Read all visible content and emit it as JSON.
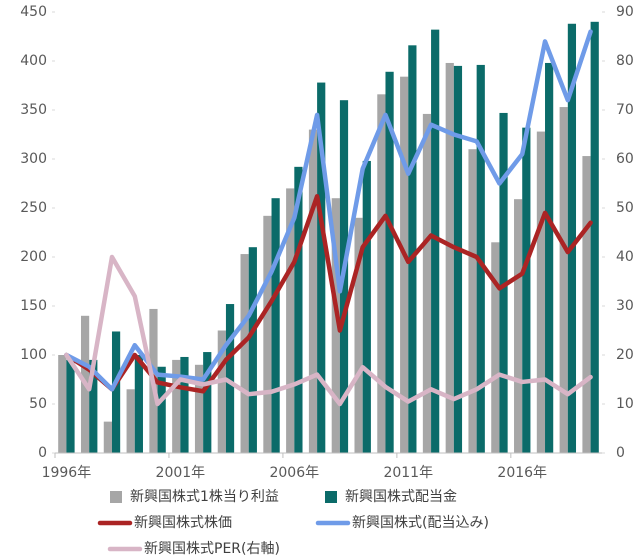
{
  "chart_data": {
    "type": "bar",
    "categories": [
      "1996年",
      null,
      null,
      null,
      null,
      "2001年",
      null,
      null,
      null,
      null,
      "2006年",
      null,
      null,
      null,
      null,
      "2011年",
      null,
      null,
      null,
      null,
      "2016年",
      null,
      null,
      null
    ],
    "series": [
      {
        "name": "新興国株式1株当り利益",
        "type": "bar",
        "color": "#a6a6a6",
        "values": [
          100,
          140,
          32,
          65,
          147,
          95,
          90,
          125,
          203,
          242,
          270,
          330,
          260,
          240,
          366,
          384,
          346,
          398,
          310,
          215,
          259,
          328,
          353,
          303
        ]
      },
      {
        "name": "新興国株式配当金",
        "type": "bar",
        "color": "#0b6b69",
        "values": [
          95,
          95,
          124,
          100,
          88,
          98,
          103,
          152,
          210,
          260,
          292,
          378,
          360,
          298,
          389,
          416,
          432,
          395,
          396,
          347,
          332,
          398,
          438,
          440
        ]
      },
      {
        "name": "新興国株式株価",
        "type": "line",
        "color": "#ab2424",
        "values": [
          100,
          85,
          65,
          100,
          72,
          67,
          63,
          95,
          118,
          155,
          195,
          262,
          125,
          210,
          242,
          195,
          222,
          210,
          200,
          168,
          183,
          245,
          205,
          235
        ]
      },
      {
        "name": "新興国株式(配当込み)",
        "type": "line",
        "color": "#6f9be8",
        "values": [
          100,
          88,
          65,
          110,
          80,
          78,
          75,
          110,
          140,
          185,
          240,
          345,
          165,
          290,
          345,
          285,
          335,
          325,
          318,
          275,
          305,
          420,
          360,
          430
        ]
      },
      {
        "name": "新興国株式PER(右軸)",
        "type": "line",
        "axis": "y2",
        "color": "#d8b5c6",
        "values": [
          20,
          13,
          40,
          32,
          10,
          15,
          14,
          15,
          12,
          12.5,
          14,
          16,
          10,
          17.5,
          13.5,
          10.5,
          13,
          11,
          13,
          16,
          14.5,
          15,
          12,
          15.5
        ]
      }
    ],
    "ylim": [
      0,
      450
    ],
    "yticks": [
      0,
      50,
      100,
      150,
      200,
      250,
      300,
      350,
      400,
      450
    ],
    "y2lim": [
      0,
      90
    ],
    "y2ticks": [
      0,
      10,
      20,
      30,
      40,
      50,
      60,
      70,
      80,
      90
    ]
  }
}
